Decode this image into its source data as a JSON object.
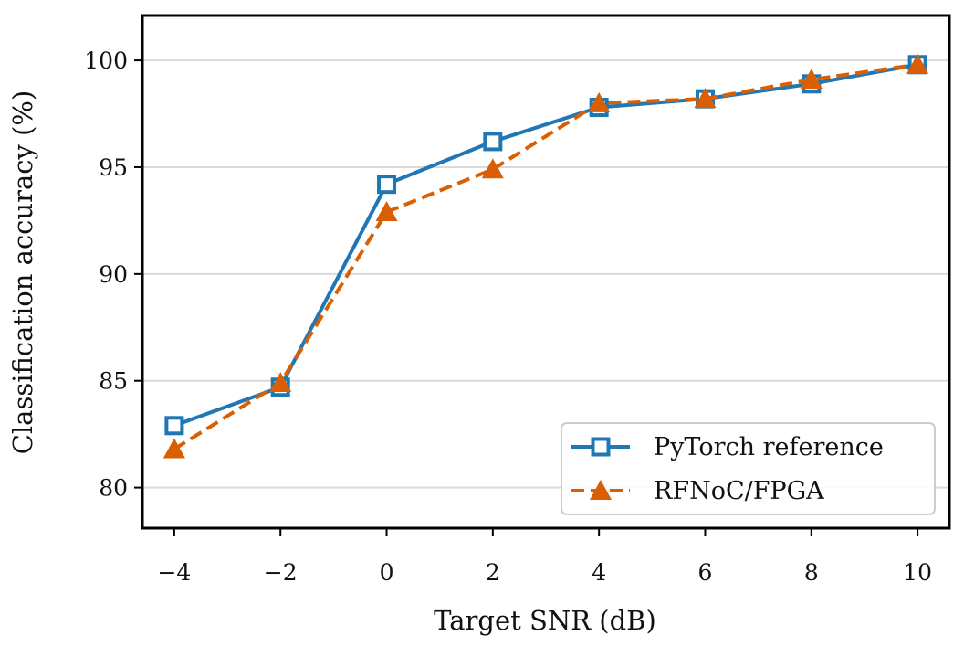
{
  "chart_data": {
    "type": "line",
    "xlabel": "Target SNR (dB)",
    "ylabel": "Classification accuracy (%)",
    "x": [
      -4,
      -2,
      0,
      2,
      4,
      6,
      8,
      10
    ],
    "xticks": [
      -4,
      -2,
      0,
      2,
      4,
      6,
      8,
      10
    ],
    "xtick_labels": [
      "−4",
      "−2",
      "0",
      "2",
      "4",
      "6",
      "8",
      "10"
    ],
    "yticks": [
      80,
      85,
      90,
      95,
      100
    ],
    "ytick_labels": [
      "80",
      "85",
      "90",
      "95",
      "100"
    ],
    "xlim": [
      -4.6,
      10.6
    ],
    "ylim": [
      78.1,
      102.1
    ],
    "grid": "horizontal",
    "legend_position": "lower-right",
    "series": [
      {
        "name": "PyTorch reference",
        "values": [
          82.9,
          84.7,
          94.2,
          96.2,
          97.8,
          98.2,
          98.9,
          99.8
        ],
        "color": "#1f77b4",
        "marker": "open-square",
        "line_style": "solid"
      },
      {
        "name": "RFNoC/FPGA",
        "values": [
          81.8,
          84.9,
          92.9,
          94.9,
          98.0,
          98.2,
          99.1,
          99.8
        ],
        "color": "#d95f02",
        "marker": "filled-triangle",
        "line_style": "dashed"
      }
    ]
  }
}
